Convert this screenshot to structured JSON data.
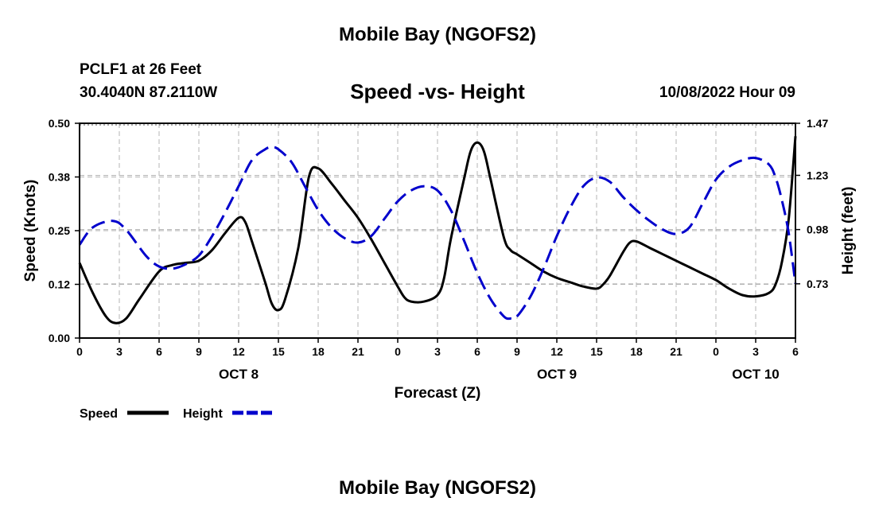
{
  "header": {
    "title": "Mobile Bay (NGOFS2)",
    "station": "PCLF1 at 26 Feet",
    "coords": "30.4040N  87.2110W",
    "timestamp": "10/08/2022 Hour 09"
  },
  "footer": {
    "title": "Mobile Bay (NGOFS2)"
  },
  "colors": {
    "speed": "#000000",
    "height": "#0000cc",
    "grid": "#b4b4b4"
  },
  "chart_data": {
    "type": "line",
    "title": "Speed -vs- Height",
    "xlabel": "Forecast (Z)",
    "ylabel": "Speed (Knots)",
    "y2label": "Height (feet)",
    "xlim": [
      0,
      54
    ],
    "ylim": [
      0,
      0.5
    ],
    "y2lim": [
      0.48,
      1.47
    ],
    "x_ticks": [
      0,
      3,
      6,
      9,
      12,
      15,
      18,
      21,
      24,
      27,
      30,
      33,
      36,
      39,
      42,
      45,
      48,
      51,
      54
    ],
    "x_tick_labels": [
      "0",
      "3",
      "6",
      "9",
      "12",
      "15",
      "18",
      "21",
      "0",
      "3",
      "6",
      "9",
      "12",
      "15",
      "18",
      "21",
      "0",
      "3",
      "6"
    ],
    "day_labels": [
      {
        "x": 12,
        "label": "OCT 8"
      },
      {
        "x": 36,
        "label": "OCT 9"
      },
      {
        "x": 51,
        "label": "OCT 10"
      }
    ],
    "y_ticks": [
      0,
      0.125,
      0.25,
      0.375,
      0.5
    ],
    "y_tick_labels": [
      "0.00",
      "0.12",
      "0.25",
      "0.38",
      "0.50"
    ],
    "y2_ticks": [
      0.73,
      0.98,
      1.23,
      1.47
    ],
    "y2_tick_labels": [
      "0.73",
      "0.98",
      "1.23",
      "1.47"
    ],
    "legend": [
      {
        "name": "Speed",
        "style": "solid"
      },
      {
        "name": "Height",
        "style": "dashed"
      }
    ],
    "series": [
      {
        "name": "Speed",
        "axis": "left",
        "points": [
          [
            0,
            0.175
          ],
          [
            1,
            0.105
          ],
          [
            2,
            0.05
          ],
          [
            2.7,
            0.035
          ],
          [
            3.5,
            0.045
          ],
          [
            4.5,
            0.09
          ],
          [
            6,
            0.155
          ],
          [
            7,
            0.17
          ],
          [
            8,
            0.175
          ],
          [
            9,
            0.18
          ],
          [
            10,
            0.205
          ],
          [
            11,
            0.245
          ],
          [
            12,
            0.28
          ],
          [
            12.5,
            0.27
          ],
          [
            13,
            0.225
          ],
          [
            14,
            0.13
          ],
          [
            14.5,
            0.08
          ],
          [
            15,
            0.065
          ],
          [
            15.5,
            0.09
          ],
          [
            16.5,
            0.21
          ],
          [
            17.3,
            0.375
          ],
          [
            18,
            0.395
          ],
          [
            19,
            0.36
          ],
          [
            20,
            0.32
          ],
          [
            21,
            0.28
          ],
          [
            22,
            0.23
          ],
          [
            23,
            0.175
          ],
          [
            24,
            0.12
          ],
          [
            24.5,
            0.095
          ],
          [
            25,
            0.085
          ],
          [
            26,
            0.085
          ],
          [
            27,
            0.1
          ],
          [
            27.5,
            0.14
          ],
          [
            28,
            0.23
          ],
          [
            29,
            0.37
          ],
          [
            29.5,
            0.435
          ],
          [
            30,
            0.455
          ],
          [
            30.5,
            0.435
          ],
          [
            31,
            0.37
          ],
          [
            32,
            0.235
          ],
          [
            32.5,
            0.205
          ],
          [
            33,
            0.195
          ],
          [
            34,
            0.175
          ],
          [
            35,
            0.155
          ],
          [
            36,
            0.14
          ],
          [
            37,
            0.13
          ],
          [
            38,
            0.12
          ],
          [
            39,
            0.115
          ],
          [
            39.5,
            0.125
          ],
          [
            40,
            0.145
          ],
          [
            41,
            0.2
          ],
          [
            41.5,
            0.222
          ],
          [
            42,
            0.225
          ],
          [
            43,
            0.21
          ],
          [
            44,
            0.195
          ],
          [
            45,
            0.18
          ],
          [
            46,
            0.165
          ],
          [
            47,
            0.15
          ],
          [
            48,
            0.135
          ],
          [
            49,
            0.115
          ],
          [
            50,
            0.1
          ],
          [
            51,
            0.097
          ],
          [
            52,
            0.105
          ],
          [
            52.5,
            0.125
          ],
          [
            53,
            0.18
          ],
          [
            53.5,
            0.28
          ],
          [
            54,
            0.47
          ]
        ]
      },
      {
        "name": "Height",
        "axis": "right",
        "points": [
          [
            0,
            0.91
          ],
          [
            1,
            0.99
          ],
          [
            2.5,
            1.02
          ],
          [
            3.5,
            0.98
          ],
          [
            5,
            0.86
          ],
          [
            6,
            0.81
          ],
          [
            7,
            0.8
          ],
          [
            8,
            0.82
          ],
          [
            9,
            0.86
          ],
          [
            10,
            0.95
          ],
          [
            11,
            1.06
          ],
          [
            12,
            1.18
          ],
          [
            13,
            1.3
          ],
          [
            14,
            1.35
          ],
          [
            14.5,
            1.36
          ],
          [
            15,
            1.35
          ],
          [
            16,
            1.29
          ],
          [
            17,
            1.18
          ],
          [
            18,
            1.07
          ],
          [
            19,
            0.99
          ],
          [
            20,
            0.94
          ],
          [
            21,
            0.92
          ],
          [
            22,
            0.95
          ],
          [
            23,
            1.03
          ],
          [
            24,
            1.11
          ],
          [
            25,
            1.16
          ],
          [
            26,
            1.18
          ],
          [
            27,
            1.16
          ],
          [
            28,
            1.07
          ],
          [
            29,
            0.93
          ],
          [
            30,
            0.78
          ],
          [
            31,
            0.66
          ],
          [
            32,
            0.58
          ],
          [
            32.5,
            0.57
          ],
          [
            33,
            0.58
          ],
          [
            34,
            0.67
          ],
          [
            35,
            0.8
          ],
          [
            36,
            0.95
          ],
          [
            37,
            1.08
          ],
          [
            38,
            1.18
          ],
          [
            39,
            1.22
          ],
          [
            40,
            1.2
          ],
          [
            41,
            1.13
          ],
          [
            42,
            1.07
          ],
          [
            43,
            1.02
          ],
          [
            44,
            0.98
          ],
          [
            45,
            0.96
          ],
          [
            46,
            0.99
          ],
          [
            47,
            1.1
          ],
          [
            48,
            1.21
          ],
          [
            49,
            1.27
          ],
          [
            50,
            1.3
          ],
          [
            51,
            1.31
          ],
          [
            52,
            1.28
          ],
          [
            52.5,
            1.22
          ],
          [
            53,
            1.11
          ],
          [
            53.5,
            0.96
          ],
          [
            54,
            0.73
          ]
        ]
      }
    ]
  }
}
